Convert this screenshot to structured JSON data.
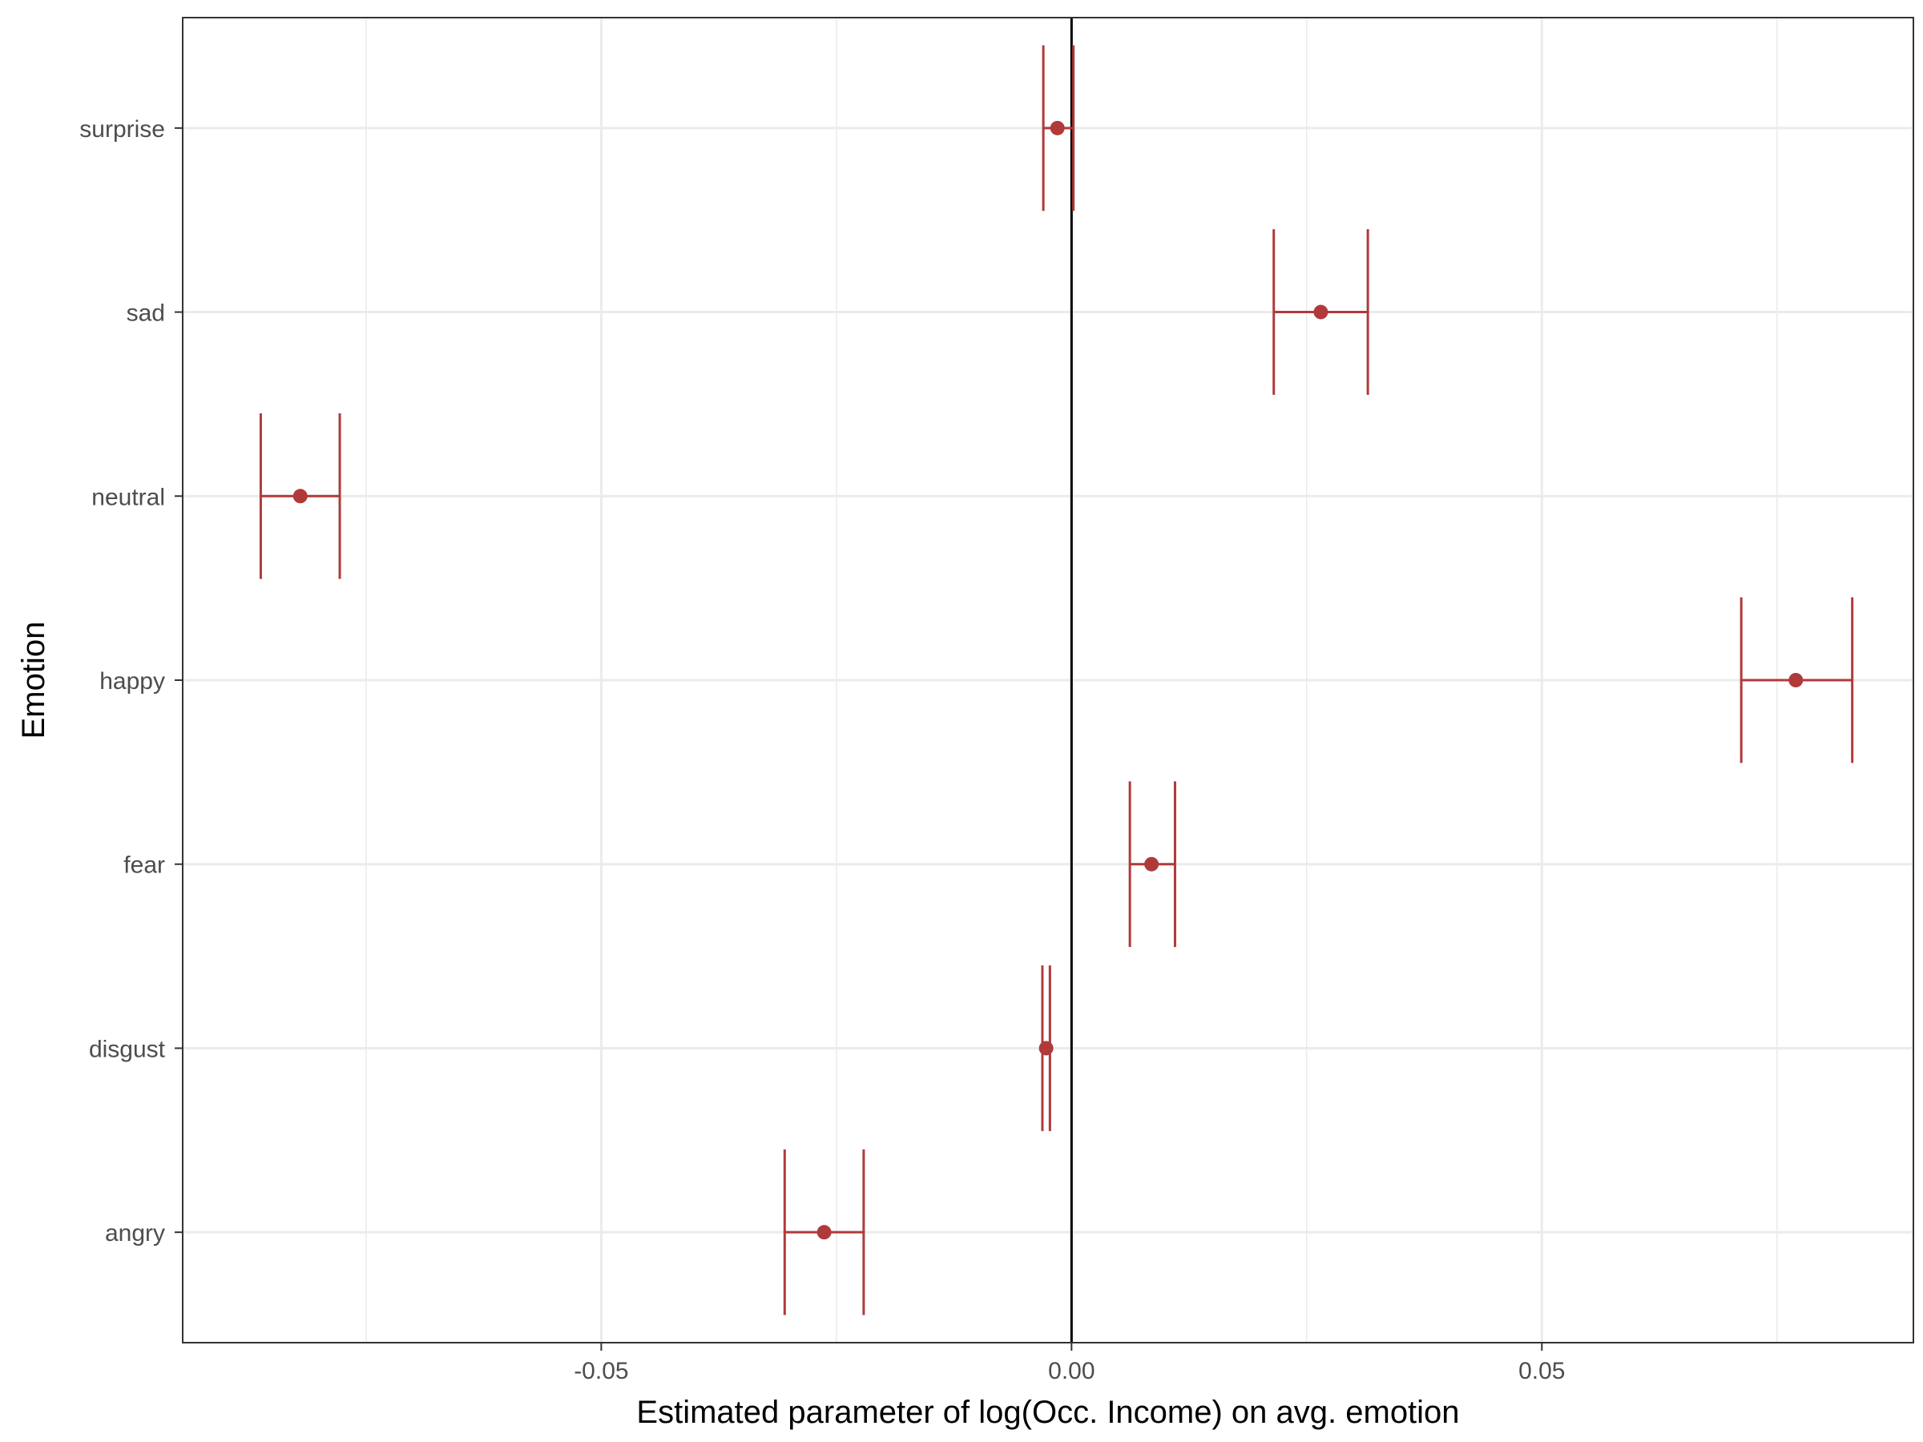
{
  "chart_data": {
    "type": "scatter",
    "xlabel": "Estimated parameter of log(Occ. Income) on avg. emotion",
    "ylabel": "Emotion",
    "xlim": [
      -0.0945,
      0.0895
    ],
    "x_ticks": [
      -0.05,
      0.0,
      0.05
    ],
    "x_tick_labels": [
      "-0.05",
      "0.00",
      "0.05"
    ],
    "x_minor_ticks": [
      -0.075,
      -0.025,
      0.025,
      0.075
    ],
    "categories": [
      "surprise",
      "sad",
      "neutral",
      "happy",
      "fear",
      "disgust",
      "angry"
    ],
    "estimates": [
      -0.0015,
      0.0265,
      -0.082,
      0.077,
      0.0085,
      -0.0027,
      -0.0263
    ],
    "ci_low": [
      -0.003,
      0.0215,
      -0.0862,
      0.0712,
      0.0062,
      -0.0031,
      -0.0305
    ],
    "ci_high": [
      0.0002,
      0.0315,
      -0.0778,
      0.083,
      0.011,
      -0.0023,
      -0.0221
    ],
    "reference_line_x": 0,
    "grid": true,
    "colors": {
      "series": "#b03a3a",
      "reference": "#000000",
      "grid": "#ebebeb",
      "panel_border": "#333333"
    }
  }
}
